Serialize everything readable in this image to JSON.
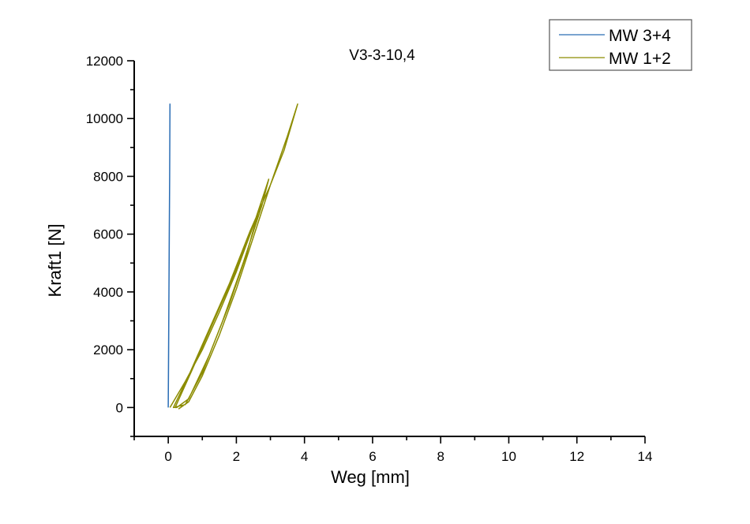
{
  "chart_data": {
    "type": "line",
    "title": "V3-3-10,4",
    "xlabel": "Weg [mm]",
    "ylabel": "Kraft1 [N]",
    "xlim": [
      -1,
      14
    ],
    "ylim": [
      -1000,
      12000
    ],
    "xticks": [
      0,
      2,
      4,
      6,
      8,
      10,
      12,
      14
    ],
    "yticks": [
      0,
      2000,
      4000,
      6000,
      8000,
      10000,
      12000
    ],
    "xtick_labels": [
      "0",
      "2",
      "4",
      "6",
      "8",
      "10",
      "12",
      "14"
    ],
    "ytick_labels": [
      "0",
      "2000",
      "4000",
      "6000",
      "8000",
      "10000",
      "12000"
    ],
    "grid": false,
    "legend_position": "top-right",
    "series": [
      {
        "name": "MW 3+4",
        "color": "#2a6db5",
        "x": [
          0.0,
          0.01,
          0.02,
          0.03,
          0.04,
          0.05,
          0.04,
          0.02,
          0.0
        ],
        "y": [
          0,
          2000,
          4000,
          6000,
          8000,
          10500,
          8000,
          4000,
          0
        ]
      },
      {
        "name": "MW 1+2",
        "color": "#8c8c00",
        "x": [
          0.05,
          0.5,
          1.0,
          1.5,
          2.0,
          2.5,
          2.95,
          2.7,
          2.3,
          1.8,
          1.2,
          0.6,
          0.25,
          0.2,
          0.7,
          1.3,
          1.9,
          2.5,
          2.95,
          2.75,
          2.2,
          1.6,
          1.0,
          0.5,
          0.15,
          0.6,
          1.2,
          1.8,
          2.4,
          3.0,
          3.4,
          3.8,
          3.5,
          3.0,
          2.5,
          2.0,
          1.5,
          1.0,
          0.6,
          0.3
        ],
        "y": [
          0,
          900,
          2000,
          3300,
          4700,
          6300,
          7900,
          7000,
          5300,
          3600,
          1800,
          300,
          0,
          0,
          1300,
          2900,
          4500,
          6300,
          7900,
          7000,
          5000,
          3000,
          1200,
          100,
          0,
          1100,
          2700,
          4300,
          6100,
          7700,
          8900,
          10500,
          9400,
          7700,
          5900,
          4100,
          2500,
          1100,
          200,
          -50
        ]
      }
    ]
  }
}
